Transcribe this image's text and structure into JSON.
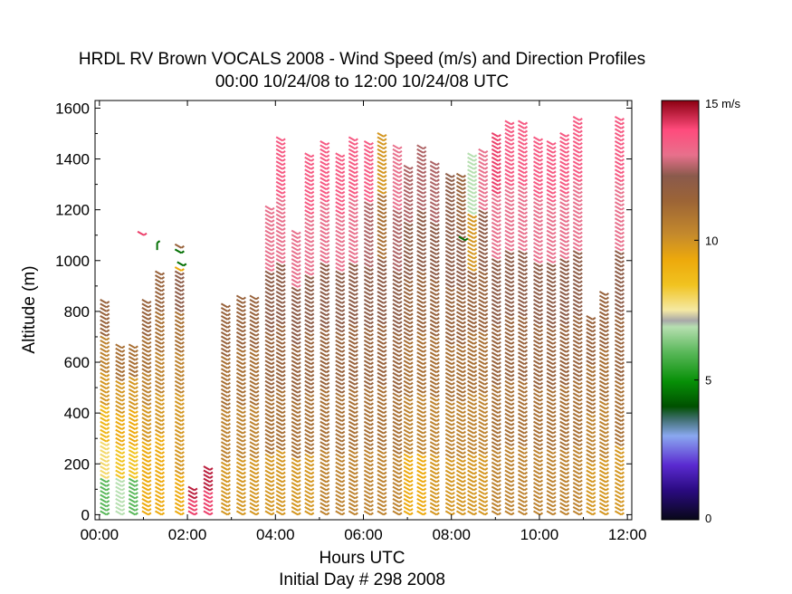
{
  "chart_data": {
    "type": "scatter",
    "title": "HRDL RV Brown VOCALS 2008 - Wind Speed (m/s) and Direction Profiles",
    "subtitle": "00:00 10/24/08 to 12:00 10/24/08  UTC",
    "xlabel": "Hours UTC",
    "xlabel2": "Initial Day # 298  2008",
    "ylabel": "Altitude (m)",
    "xlim": [
      -0.1,
      12.1
    ],
    "ylim": [
      -20,
      1630
    ],
    "xticks": [
      "00:00",
      "02:00",
      "04:00",
      "06:00",
      "08:00",
      "10:00",
      "12:00"
    ],
    "xtick_values": [
      0,
      2,
      4,
      6,
      8,
      10,
      12
    ],
    "yticks": [
      "0",
      "200",
      "400",
      "600",
      "800",
      "1000",
      "1200",
      "1400",
      "1600"
    ],
    "ytick_values": [
      0,
      200,
      400,
      600,
      800,
      1000,
      1200,
      1400,
      1600
    ],
    "grid": false,
    "legend": "none",
    "colorbar": {
      "unit_label": "15 m/s",
      "ticks": [
        "0",
        "5",
        "10"
      ],
      "tick_values": [
        0,
        5,
        10
      ],
      "range": [
        0,
        15
      ]
    },
    "profiles": [
      {
        "t": 0.1,
        "top": 840,
        "speeds": [
          6,
          8,
          9,
          10,
          10.5,
          11.5
        ]
      },
      {
        "t": 0.45,
        "top": 660,
        "speeds": [
          7,
          8.5,
          9.5,
          10,
          11
        ]
      },
      {
        "t": 0.75,
        "top": 670,
        "speeds": [
          6,
          8.5,
          9.5,
          10,
          11
        ]
      },
      {
        "t": 1.05,
        "top": 840,
        "speeds": [
          9.5,
          9.5,
          10,
          10.5,
          11,
          11.5
        ]
      },
      {
        "t": 1.35,
        "top": 950,
        "speeds": [
          9.5,
          9.5,
          10,
          10.5,
          11,
          11.5
        ]
      },
      {
        "t": 1.8,
        "top": 950,
        "speeds": [
          9.5,
          10,
          10,
          10.5,
          11,
          12
        ]
      },
      {
        "t": 2.1,
        "top": 100,
        "speeds": [
          14,
          14.5
        ]
      },
      {
        "t": 2.45,
        "top": 180,
        "speeds": [
          14,
          14.5
        ]
      },
      {
        "t": 2.85,
        "top": 820,
        "speeds": [
          10,
          10.5,
          11,
          11.5
        ]
      },
      {
        "t": 3.2,
        "top": 860,
        "speeds": [
          10,
          10.5,
          11,
          11.5
        ]
      },
      {
        "t": 3.5,
        "top": 860,
        "speeds": [
          10,
          10.5,
          11,
          11.5
        ]
      },
      {
        "t": 3.85,
        "top": 1200,
        "speeds": [
          10,
          11,
          11.5,
          12,
          13
        ]
      },
      {
        "t": 4.1,
        "top": 1480,
        "speeds": [
          10,
          11,
          11.5,
          12,
          13,
          13.5
        ]
      },
      {
        "t": 4.45,
        "top": 1110,
        "speeds": [
          10,
          11,
          11.5,
          12,
          13
        ]
      },
      {
        "t": 4.75,
        "top": 1410,
        "speeds": [
          10,
          11,
          11.5,
          12,
          13,
          13.5
        ]
      },
      {
        "t": 5.1,
        "top": 1470,
        "speeds": [
          10.5,
          11,
          11.5,
          12,
          13,
          13.5
        ]
      },
      {
        "t": 5.45,
        "top": 1420,
        "speeds": [
          10.5,
          11,
          11.5,
          12,
          13,
          13.5
        ]
      },
      {
        "t": 5.75,
        "top": 1480,
        "speeds": [
          10.5,
          11,
          11.5,
          12,
          13,
          13.5
        ]
      },
      {
        "t": 6.1,
        "top": 1460,
        "speeds": [
          10.5,
          11,
          11.5,
          12,
          12.5,
          13.5
        ]
      },
      {
        "t": 6.4,
        "top": 1500,
        "speeds": [
          10.5,
          11,
          11.5,
          12,
          11,
          10
        ]
      },
      {
        "t": 6.75,
        "top": 1440,
        "speeds": [
          10.5,
          11,
          11.5,
          12,
          12.5,
          13
        ]
      },
      {
        "t": 7.0,
        "top": 1370,
        "speeds": [
          9.5,
          10.5,
          11,
          11.5,
          12,
          12.5
        ]
      },
      {
        "t": 7.3,
        "top": 1440,
        "speeds": [
          9.5,
          10.5,
          11,
          11.5,
          12,
          12.5
        ]
      },
      {
        "t": 7.6,
        "top": 1380,
        "speeds": [
          10,
          10.5,
          11,
          11.5,
          12,
          12.5
        ]
      },
      {
        "t": 7.95,
        "top": 1330,
        "speeds": [
          10,
          10.5,
          11,
          11.5,
          12,
          12
        ]
      },
      {
        "t": 8.2,
        "top": 1340,
        "speeds": [
          10,
          10.5,
          11,
          11.5,
          12,
          11.5
        ]
      },
      {
        "t": 8.45,
        "top": 1420,
        "speeds": [
          10,
          10.5,
          11,
          11.5,
          10,
          7
        ]
      },
      {
        "t": 8.7,
        "top": 1430,
        "speeds": [
          10,
          10.5,
          11,
          11.5,
          12,
          13
        ]
      },
      {
        "t": 9.0,
        "top": 1500,
        "speeds": [
          10.5,
          11,
          11.5,
          12,
          13,
          14
        ]
      },
      {
        "t": 9.3,
        "top": 1550,
        "speeds": [
          10.5,
          11,
          11.5,
          12,
          13,
          13.5
        ]
      },
      {
        "t": 9.6,
        "top": 1540,
        "speeds": [
          10.5,
          11,
          11.5,
          12,
          13,
          13.5
        ]
      },
      {
        "t": 9.95,
        "top": 1480,
        "speeds": [
          10.5,
          11,
          11.5,
          12,
          13,
          13.5
        ]
      },
      {
        "t": 10.25,
        "top": 1470,
        "speeds": [
          10.5,
          11,
          11.5,
          12,
          13,
          13.5
        ]
      },
      {
        "t": 10.55,
        "top": 1500,
        "speeds": [
          10.5,
          11,
          11.5,
          12,
          13,
          13.5
        ]
      },
      {
        "t": 10.85,
        "top": 1560,
        "speeds": [
          10.5,
          11,
          11.5,
          12,
          13,
          13.5
        ]
      },
      {
        "t": 11.15,
        "top": 780,
        "speeds": [
          10,
          10.5,
          11,
          11.5
        ]
      },
      {
        "t": 11.45,
        "top": 870,
        "speeds": [
          10,
          10.5,
          11,
          11.5
        ]
      },
      {
        "t": 11.8,
        "top": 1560,
        "speeds": [
          10,
          11,
          11.5,
          12,
          13,
          13.5
        ]
      }
    ],
    "isolated_barbs": [
      {
        "t": 0.95,
        "alt": 1100,
        "speed": 14
      },
      {
        "t": 1.25,
        "alt": 1070,
        "speed": 4.5
      },
      {
        "t": 1.8,
        "alt": 1050,
        "speed": 11.5
      },
      {
        "t": 1.8,
        "alt": 1030,
        "speed": 4.5
      },
      {
        "t": 1.85,
        "alt": 980,
        "speed": 4.5
      },
      {
        "t": 1.8,
        "alt": 960,
        "speed": 9.5
      },
      {
        "t": 8.25,
        "alt": 1080,
        "speed": 4.5
      }
    ]
  }
}
